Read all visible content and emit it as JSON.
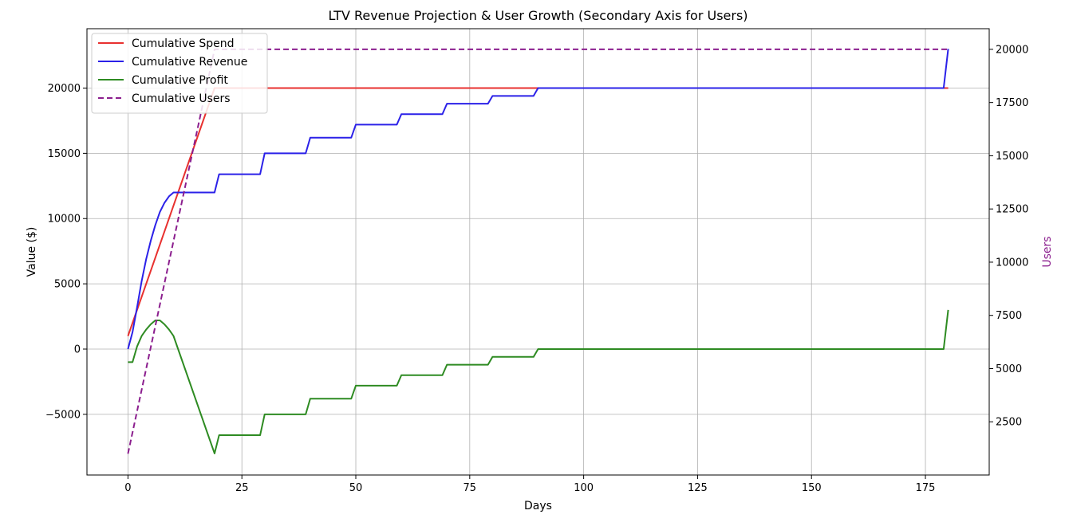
{
  "chart_data": {
    "type": "line",
    "title": "LTV Revenue Projection & User Growth (Secondary Axis for Users)",
    "xlabel": "Days",
    "ylabel": "Value ($)",
    "y2label": "Users",
    "xlim": [
      -9,
      189
    ],
    "ylim": [
      -9650,
      24550
    ],
    "y2lim": [
      0,
      20970
    ],
    "x_ticks": [
      0,
      25,
      50,
      75,
      100,
      125,
      150,
      175
    ],
    "y_ticks": [
      -5000,
      0,
      5000,
      10000,
      15000,
      20000
    ],
    "y2_ticks": [
      2500,
      5000,
      7500,
      10000,
      12500,
      15000,
      17500,
      20000
    ],
    "grid": true,
    "legend_position": "top-left",
    "colors": {
      "spend": "#e8312f",
      "revenue": "#2b21e8",
      "profit": "#2e8b22",
      "users": "#8b1e8e",
      "users_axis_label": "#8b1e8e"
    },
    "series": [
      {
        "name": "Cumulative Spend",
        "color": "#e8312f",
        "dash": "solid",
        "axis": "left",
        "points": [
          [
            0,
            1000
          ],
          [
            19,
            20000
          ],
          [
            180,
            20000
          ]
        ]
      },
      {
        "name": "Cumulative Revenue",
        "color": "#2b21e8",
        "dash": "solid",
        "axis": "left",
        "points": [
          [
            0,
            0
          ],
          [
            1,
            1300
          ],
          [
            2,
            3200
          ],
          [
            3,
            5200
          ],
          [
            4,
            6900
          ],
          [
            5,
            8300
          ],
          [
            6,
            9500
          ],
          [
            7,
            10500
          ],
          [
            8,
            11200
          ],
          [
            9,
            11700
          ],
          [
            10,
            12000
          ],
          [
            19,
            12000
          ],
          [
            20,
            13400
          ],
          [
            29,
            13400
          ],
          [
            30,
            15000
          ],
          [
            39,
            15000
          ],
          [
            40,
            16200
          ],
          [
            49,
            16200
          ],
          [
            50,
            17200
          ],
          [
            59,
            17200
          ],
          [
            60,
            18000
          ],
          [
            69,
            18000
          ],
          [
            70,
            18800
          ],
          [
            79,
            18800
          ],
          [
            80,
            19400
          ],
          [
            89,
            19400
          ],
          [
            90,
            20000
          ],
          [
            179,
            20000
          ],
          [
            180,
            23000
          ]
        ]
      },
      {
        "name": "Cumulative Profit",
        "color": "#2e8b22",
        "dash": "solid",
        "axis": "left",
        "points": [
          [
            0,
            -1000
          ],
          [
            1,
            -1000
          ],
          [
            2,
            200
          ],
          [
            3,
            1000
          ],
          [
            4,
            1500
          ],
          [
            5,
            1900
          ],
          [
            6,
            2200
          ],
          [
            7,
            2200
          ],
          [
            8,
            1900
          ],
          [
            9,
            1500
          ],
          [
            10,
            1000
          ],
          [
            19,
            -8000
          ],
          [
            20,
            -6600
          ],
          [
            29,
            -6600
          ],
          [
            30,
            -5000
          ],
          [
            39,
            -5000
          ],
          [
            40,
            -3800
          ],
          [
            49,
            -3800
          ],
          [
            50,
            -2800
          ],
          [
            59,
            -2800
          ],
          [
            60,
            -2000
          ],
          [
            69,
            -2000
          ],
          [
            70,
            -1200
          ],
          [
            79,
            -1200
          ],
          [
            80,
            -600
          ],
          [
            89,
            -600
          ],
          [
            90,
            0
          ],
          [
            179,
            0
          ],
          [
            180,
            3000
          ]
        ]
      },
      {
        "name": "Cumulative Users",
        "color": "#8b1e8e",
        "dash": "dashed",
        "axis": "right",
        "points": [
          [
            0,
            1000
          ],
          [
            19,
            20000
          ],
          [
            180,
            20000
          ]
        ]
      }
    ]
  }
}
